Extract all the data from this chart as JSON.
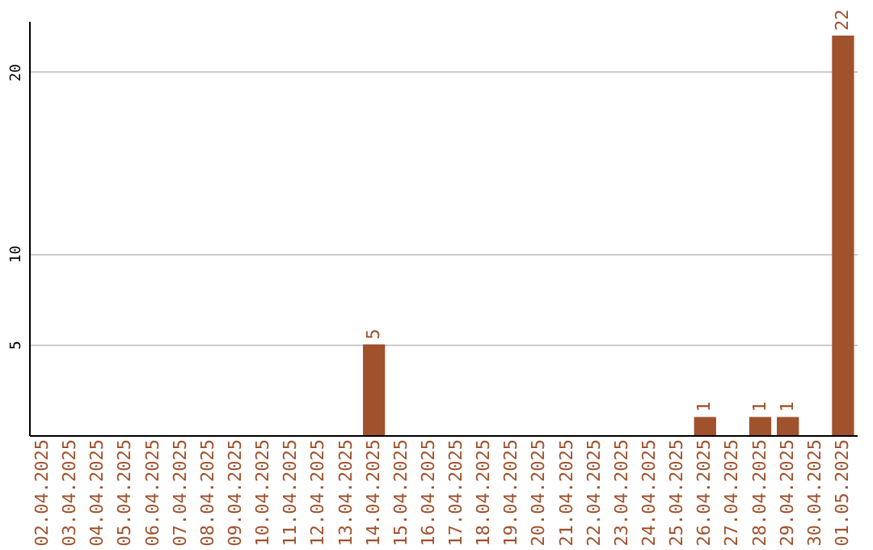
{
  "chart_data": {
    "type": "bar",
    "categories": [
      "02.04.2025",
      "03.04.2025",
      "04.04.2025",
      "05.04.2025",
      "06.04.2025",
      "07.04.2025",
      "08.04.2025",
      "09.04.2025",
      "10.04.2025",
      "11.04.2025",
      "12.04.2025",
      "13.04.2025",
      "14.04.2025",
      "15.04.2025",
      "16.04.2025",
      "17.04.2025",
      "18.04.2025",
      "19.04.2025",
      "20.04.2025",
      "21.04.2025",
      "22.04.2025",
      "23.04.2025",
      "24.04.2025",
      "25.04.2025",
      "26.04.2025",
      "27.04.2025",
      "28.04.2025",
      "29.04.2025",
      "30.04.2025",
      "01.05.2025"
    ],
    "values": [
      null,
      null,
      null,
      null,
      null,
      null,
      null,
      null,
      null,
      null,
      null,
      null,
      5,
      null,
      null,
      null,
      null,
      null,
      null,
      null,
      null,
      null,
      null,
      null,
      1,
      null,
      1,
      1,
      null,
      22
    ],
    "color": "#a0522d",
    "ylim": [
      0,
      22.8
    ],
    "yticks": [
      5,
      10,
      20
    ],
    "grid": "y",
    "data_labels": true
  }
}
